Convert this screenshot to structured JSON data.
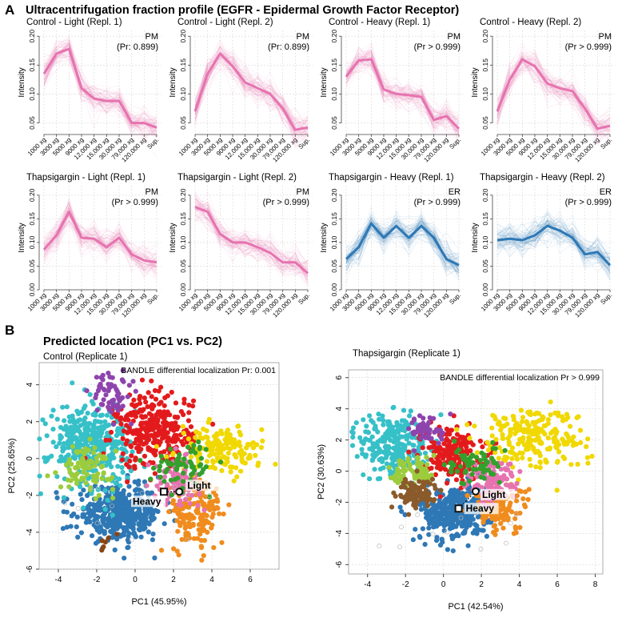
{
  "panel_labels": {
    "a": "A",
    "b": "B"
  },
  "sections": {
    "a_title": "Ultracentrifugation fraction profile (EGFR - Epidermal Growth Factor Receptor)",
    "b_title": "Predicted location (PC1 vs. PC2)"
  },
  "colors": {
    "pm_pink": "#e673b0",
    "er_blue": "#2e78b5",
    "grid": "#d8d8d8",
    "axis": "#444444"
  },
  "chart_data": [
    {
      "type": "line",
      "title": "Control - Light (Repl. 1)",
      "location": "PM",
      "probability": "(Pr: 0.899)",
      "color": "#e673b0",
      "ylabel": "Intensity",
      "categories": [
        "1000 xg",
        "3000 xg",
        "5000 xg",
        "9000 xg",
        "12,000 xg",
        "15,000 xg",
        "30,000 xg",
        "79,000 xg",
        "120,000 xg",
        "Sup."
      ],
      "values": [
        0.135,
        0.17,
        0.178,
        0.11,
        0.092,
        0.088,
        0.088,
        0.05,
        0.05,
        0.042
      ],
      "ylim": [
        0.03,
        0.21
      ],
      "yticks": [
        0.05,
        0.1,
        0.15,
        0.2
      ]
    },
    {
      "type": "line",
      "title": "Control - Light (Repl. 2)",
      "location": "PM",
      "probability": "(Pr: 0.899)",
      "color": "#e673b0",
      "ylabel": "Intensity",
      "categories": [
        "1000 xg",
        "3000 xg",
        "5000 xg",
        "9000 xg",
        "12,000 xg",
        "15,000 xg",
        "30,000 xg",
        "79,000 xg",
        "120,000 xg",
        "Sup."
      ],
      "values": [
        0.07,
        0.135,
        0.17,
        0.148,
        0.12,
        0.11,
        0.1,
        0.075,
        0.038,
        0.042
      ],
      "ylim": [
        0.03,
        0.21
      ],
      "yticks": [
        0.05,
        0.1,
        0.15,
        0.2
      ]
    },
    {
      "type": "line",
      "title": "Control - Heavy (Repl. 1)",
      "location": "PM",
      "probability": "(Pr > 0.999)",
      "color": "#e673b0",
      "ylabel": "Intensity",
      "categories": [
        "1000 xg",
        "3000 xg",
        "5000 xg",
        "9000 xg",
        "12,000 xg",
        "15,000 xg",
        "30,000 xg",
        "79,000 xg",
        "120,000 xg",
        "Sup."
      ],
      "values": [
        0.13,
        0.158,
        0.16,
        0.108,
        0.1,
        0.098,
        0.095,
        0.055,
        0.062,
        0.04
      ],
      "ylim": [
        0.03,
        0.21
      ],
      "yticks": [
        0.05,
        0.1,
        0.15,
        0.2
      ]
    },
    {
      "type": "line",
      "title": "Control - Heavy (Repl. 2)",
      "location": "PM",
      "probability": "(Pr > 0.999)",
      "color": "#e673b0",
      "ylabel": "Intensity",
      "categories": [
        "1000 xg",
        "3000 xg",
        "5000 xg",
        "9000 xg",
        "12,000 xg",
        "15,000 xg",
        "30,000 xg",
        "79,000 xg",
        "120,000 xg",
        "Sup."
      ],
      "values": [
        0.07,
        0.125,
        0.16,
        0.148,
        0.118,
        0.11,
        0.105,
        0.075,
        0.04,
        0.045
      ],
      "ylim": [
        0.03,
        0.21
      ],
      "yticks": [
        0.05,
        0.1,
        0.15,
        0.2
      ]
    },
    {
      "type": "line",
      "title": "Thapsigargin - Light (Repl. 1)",
      "location": "PM",
      "probability": "(Pr > 0.999)",
      "color": "#e673b0",
      "ylabel": "Intensity",
      "categories": [
        "1000 xg",
        "3000 xg",
        "5000 xg",
        "9000 xg",
        "12,000 xg",
        "15,000 xg",
        "30,000 xg",
        "79,000 xg",
        "120,000 xg",
        "Sup."
      ],
      "values": [
        0.085,
        0.115,
        0.165,
        0.11,
        0.108,
        0.09,
        0.11,
        0.075,
        0.062,
        0.058
      ],
      "ylim": [
        0.0,
        0.22
      ],
      "yticks": [
        0.0,
        0.05,
        0.1,
        0.15,
        0.2
      ]
    },
    {
      "type": "line",
      "title": "Thapsigargin - Light (Repl. 2)",
      "location": "PM",
      "probability": "(Pr > 0.999)",
      "color": "#e673b0",
      "ylabel": "Intensity",
      "categories": [
        "1000 xg",
        "3000 xg",
        "5000 xg",
        "9000 xg",
        "12,000 xg",
        "15,000 xg",
        "30,000 xg",
        "79,000 xg",
        "120,000 xg",
        "Sup."
      ],
      "values": [
        0.175,
        0.165,
        0.118,
        0.1,
        0.1,
        0.09,
        0.078,
        0.058,
        0.058,
        0.035
      ],
      "ylim": [
        0.0,
        0.22
      ],
      "yticks": [
        0.0,
        0.05,
        0.1,
        0.15,
        0.2
      ]
    },
    {
      "type": "line",
      "title": "Thapsigargin - Heavy (Repl. 1)",
      "location": "ER",
      "probability": "(Pr > 0.999)",
      "color": "#2e78b5",
      "ylabel": "Intensity",
      "categories": [
        "1000 xg",
        "3000 xg",
        "5000 xg",
        "9000 xg",
        "12,000 xg",
        "15,000 xg",
        "30,000 xg",
        "79,000 xg",
        "120,000 xg",
        "Sup."
      ],
      "values": [
        0.065,
        0.09,
        0.14,
        0.11,
        0.135,
        0.11,
        0.135,
        0.11,
        0.065,
        0.052
      ],
      "ylim": [
        0.0,
        0.22
      ],
      "yticks": [
        0.0,
        0.05,
        0.1,
        0.15,
        0.2
      ]
    },
    {
      "type": "line",
      "title": "Thapsigargin - Heavy (Repl. 2)",
      "location": "ER",
      "probability": "(Pr > 0.999)",
      "color": "#2e78b5",
      "ylabel": "Intensity",
      "categories": [
        "1000 xg",
        "3000 xg",
        "5000 xg",
        "9000 xg",
        "12,000 xg",
        "15,000 xg",
        "30,000 xg",
        "79,000 xg",
        "120,000 xg",
        "Sup."
      ],
      "values": [
        0.105,
        0.108,
        0.105,
        0.115,
        0.135,
        0.125,
        0.11,
        0.075,
        0.08,
        0.052
      ],
      "ylim": [
        0.0,
        0.22
      ],
      "yticks": [
        0.0,
        0.05,
        0.1,
        0.15,
        0.2
      ]
    },
    {
      "type": "scatter",
      "title": "Control (Replicate 1)",
      "annotation": "BANDLE differential localization Pr: 0.001",
      "xlabel": "PC1 (45.95%)",
      "ylabel": "PC2 (25.65%)",
      "xlim": [
        -5,
        7.5
      ],
      "ylim": [
        -6,
        5.2
      ],
      "xticks": [
        -4,
        -2,
        0,
        2,
        4,
        6
      ],
      "yticks": [
        -6,
        -4,
        -2,
        0,
        2,
        4
      ],
      "clusters": [
        {
          "color": "#2e78b5",
          "cx": -0.8,
          "cy": -3.0,
          "sx": 1.1,
          "sy": 0.7,
          "n": 420
        },
        {
          "color": "#36c0c8",
          "cx": -2.3,
          "cy": 0.8,
          "sx": 1.1,
          "sy": 1.1,
          "n": 380
        },
        {
          "color": "#e31a1c",
          "cx": 1.0,
          "cy": 1.5,
          "sx": 1.0,
          "sy": 1.0,
          "n": 300
        },
        {
          "color": "#f0d800",
          "cx": 4.5,
          "cy": 0.5,
          "sx": 1.1,
          "sy": 0.6,
          "n": 160
        },
        {
          "color": "#f08c1e",
          "cx": 3.2,
          "cy": -3.0,
          "sx": 0.7,
          "sy": 1.0,
          "n": 160
        },
        {
          "color": "#e673b0",
          "cx": 2.2,
          "cy": -1.3,
          "sx": 0.6,
          "sy": 0.6,
          "n": 90
        },
        {
          "color": "#33a02c",
          "cx": 2.6,
          "cy": -0.3,
          "sx": 0.8,
          "sy": 0.6,
          "n": 70
        },
        {
          "color": "#9ccc3c",
          "cx": -2.5,
          "cy": -0.5,
          "sx": 0.7,
          "sy": 0.6,
          "n": 90
        },
        {
          "color": "#8e44ad",
          "cx": -1.2,
          "cy": 3.5,
          "sx": 0.5,
          "sy": 0.6,
          "n": 60
        },
        {
          "color": "#8b4513",
          "cx": -1.8,
          "cy": -4.5,
          "sx": 0.4,
          "sy": 0.4,
          "n": 6
        }
      ],
      "markers": [
        {
          "label": "Heavy",
          "x": 1.5,
          "y": -1.8,
          "shape": "square"
        },
        {
          "label": "Light",
          "x": 2.3,
          "y": -1.8,
          "shape": "circle"
        }
      ]
    },
    {
      "type": "scatter",
      "title": "Thapsigargin (Replicate 1)",
      "annotation": "BANDLE differential localization Pr > 0.999",
      "xlabel": "PC1 (42.54%)",
      "ylabel": "PC2 (30.63%)",
      "xlim": [
        -5,
        8.4
      ],
      "ylim": [
        -6.6,
        6.5
      ],
      "xticks": [
        -4,
        -2,
        0,
        2,
        4,
        6,
        8
      ],
      "yticks": [
        -6,
        -4,
        -2,
        0,
        2,
        4,
        6
      ],
      "clusters": [
        {
          "color": "#2e78b5",
          "cx": 0.6,
          "cy": -2.6,
          "sx": 0.9,
          "sy": 0.9,
          "n": 360
        },
        {
          "color": "#36c0c8",
          "cx": -2.6,
          "cy": 1.6,
          "sx": 0.9,
          "sy": 1.1,
          "n": 260
        },
        {
          "color": "#e31a1c",
          "cx": 0.4,
          "cy": 1.2,
          "sx": 0.8,
          "sy": 0.8,
          "n": 200
        },
        {
          "color": "#f0d800",
          "cx": 4.6,
          "cy": 2.2,
          "sx": 1.4,
          "sy": 1.0,
          "n": 220
        },
        {
          "color": "#f08c1e",
          "cx": 3.0,
          "cy": -2.4,
          "sx": 0.7,
          "sy": 0.7,
          "n": 120
        },
        {
          "color": "#e673b0",
          "cx": 2.6,
          "cy": -0.8,
          "sx": 0.7,
          "sy": 0.7,
          "n": 110
        },
        {
          "color": "#33a02c",
          "cx": 1.6,
          "cy": 0.4,
          "sx": 0.7,
          "sy": 0.6,
          "n": 70
        },
        {
          "color": "#9ccc3c",
          "cx": -1.6,
          "cy": 0.0,
          "sx": 0.6,
          "sy": 0.6,
          "n": 70
        },
        {
          "color": "#8e44ad",
          "cx": -0.8,
          "cy": 2.6,
          "sx": 0.5,
          "sy": 0.5,
          "n": 50
        },
        {
          "color": "#8b5a2b",
          "cx": -1.4,
          "cy": -1.4,
          "sx": 0.6,
          "sy": 0.5,
          "n": 90
        }
      ],
      "markers": [
        {
          "label": "Light",
          "x": 1.7,
          "y": -1.3,
          "shape": "circle"
        },
        {
          "label": "Heavy",
          "x": 0.8,
          "y": -2.4,
          "shape": "square"
        }
      ]
    }
  ]
}
